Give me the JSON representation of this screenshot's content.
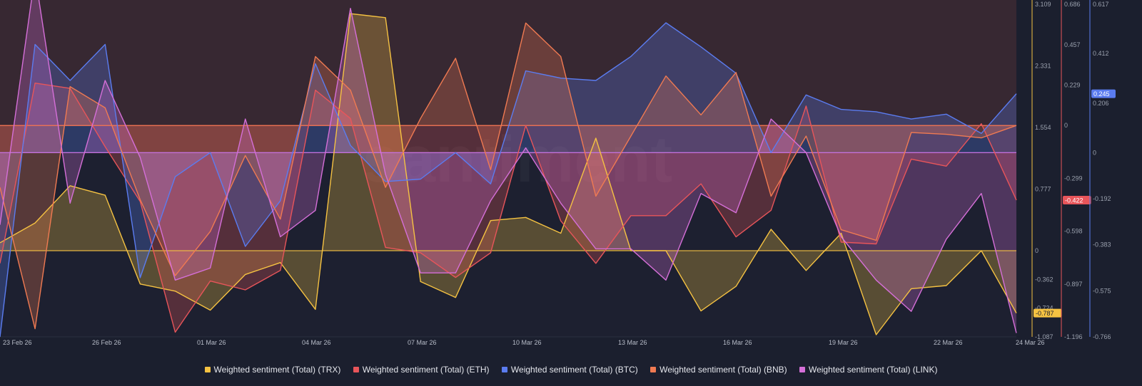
{
  "chart_data": {
    "type": "area",
    "watermark": "santiment",
    "x_labels": [
      "23 Feb 26",
      "26 Feb 26",
      "01 Mar 26",
      "04 Mar 26",
      "07 Mar 26",
      "10 Mar 26",
      "13 Mar 26",
      "16 Mar 26",
      "19 Mar 26",
      "22 Mar 26",
      "24 Mar 26"
    ],
    "points": 30,
    "axes": [
      {
        "name": "TRX",
        "color": "#f5c242",
        "ticks": [
          "3.109",
          "2.331",
          "1.554",
          "0.777",
          "0",
          "-0.362",
          "-0.724",
          "-1.087"
        ],
        "tick_values": [
          3.109,
          2.331,
          1.554,
          0.777,
          0,
          -0.362,
          -0.724,
          -1.087
        ],
        "min": -1.087,
        "max": 3.109,
        "current_badge": "-0.787",
        "badge_text_color": "#1b1f2e"
      },
      {
        "name": "ETH",
        "color": "#e8555a",
        "ticks": [
          "0.686",
          "0.457",
          "0.229",
          "0",
          "-0.299",
          "-0.598",
          "-0.897",
          "-1.196"
        ],
        "tick_values": [
          0.686,
          0.457,
          0.229,
          0,
          -0.299,
          -0.598,
          -0.897,
          -1.196
        ],
        "min": -1.196,
        "max": 0.686,
        "current_badge": "-0.422",
        "badge_text_color": "#ffffff"
      },
      {
        "name": "BTC",
        "color": "#5b7cf0",
        "ticks": [
          "0.617",
          "0.412",
          "0.206",
          "0",
          "-0.192",
          "-0.383",
          "-0.575",
          "-0.766"
        ],
        "tick_values": [
          0.617,
          0.412,
          0.206,
          0,
          -0.192,
          -0.383,
          -0.575,
          -0.766
        ],
        "min": -0.766,
        "max": 0.617,
        "current_badge": "0.245",
        "badge_text_color": "#ffffff"
      }
    ],
    "series": [
      {
        "name": "Weighted sentiment (Total) (TRX)",
        "color": "#f5c242",
        "axis": 0,
        "baseline": 0,
        "values": [
          0.1,
          0.35,
          0.82,
          0.7,
          -0.42,
          -0.51,
          -0.75,
          -0.3,
          -0.15,
          -0.74,
          2.99,
          2.94,
          -0.39,
          -0.59,
          0.38,
          0.42,
          0.22,
          1.42,
          0.0,
          0.0,
          -0.76,
          -0.45,
          0.27,
          -0.25,
          0.22,
          -1.06,
          -0.48,
          -0.44,
          0.0,
          -0.787
        ]
      },
      {
        "name": "Weighted sentiment (Total) (ETH)",
        "color": "#e8555a",
        "axis": 1,
        "baseline": 0,
        "values": [
          -0.78,
          0.24,
          0.21,
          -0.12,
          -0.43,
          -1.17,
          -0.88,
          -0.93,
          -0.82,
          0.2,
          0.04,
          -0.69,
          -0.72,
          -0.86,
          -0.72,
          0.0,
          -0.54,
          -0.78,
          -0.51,
          -0.51,
          -0.33,
          -0.63,
          -0.48,
          0.11,
          -0.66,
          -0.67,
          -0.19,
          -0.23,
          0.01,
          -0.422
        ]
      },
      {
        "name": "Weighted sentiment (Total) (BTC)",
        "color": "#5b7cf0",
        "axis": 2,
        "baseline": 0,
        "values": [
          -0.766,
          0.45,
          0.3,
          0.45,
          -0.52,
          -0.1,
          0.0,
          -0.39,
          -0.2,
          0.37,
          0.03,
          -0.12,
          -0.11,
          0.0,
          -0.13,
          0.34,
          0.31,
          0.3,
          0.4,
          0.54,
          0.44,
          0.33,
          0.0,
          0.24,
          0.18,
          0.17,
          0.14,
          0.16,
          0.08,
          0.245
        ]
      },
      {
        "name": "Weighted sentiment (Total) (BNB)",
        "color": "#f07a52",
        "axis": 1,
        "baseline": 0,
        "values": [
          -0.35,
          -1.15,
          0.22,
          0.1,
          -0.42,
          -0.85,
          -0.6,
          -0.17,
          -0.53,
          0.39,
          0.2,
          -0.35,
          0.04,
          0.38,
          -0.25,
          0.58,
          0.39,
          -0.4,
          -0.06,
          0.28,
          0.06,
          0.3,
          -0.4,
          -0.06,
          -0.59,
          -0.65,
          -0.04,
          -0.05,
          -0.07,
          0.0
        ]
      },
      {
        "name": "Weighted sentiment (Total) (LINK)",
        "color": "#d56fd8",
        "axis": 2,
        "baseline": 0,
        "values": [
          -0.3,
          0.74,
          -0.21,
          0.3,
          -0.02,
          -0.53,
          -0.48,
          0.14,
          -0.35,
          -0.24,
          0.6,
          -0.09,
          -0.5,
          -0.5,
          -0.2,
          0.02,
          -0.21,
          -0.4,
          -0.4,
          -0.53,
          -0.17,
          -0.25,
          0.14,
          0.0,
          -0.35,
          -0.53,
          -0.66,
          -0.36,
          -0.17,
          -0.75
        ]
      }
    ],
    "legend": [
      {
        "label": "Weighted sentiment (Total) (TRX)",
        "color": "#f5c242"
      },
      {
        "label": "Weighted sentiment (Total) (ETH)",
        "color": "#e8555a"
      },
      {
        "label": "Weighted sentiment (Total) (BTC)",
        "color": "#5b7cf0"
      },
      {
        "label": "Weighted sentiment (Total) (BNB)",
        "color": "#f07a52"
      },
      {
        "label": "Weighted sentiment (Total) (LINK)",
        "color": "#d56fd8"
      }
    ]
  }
}
